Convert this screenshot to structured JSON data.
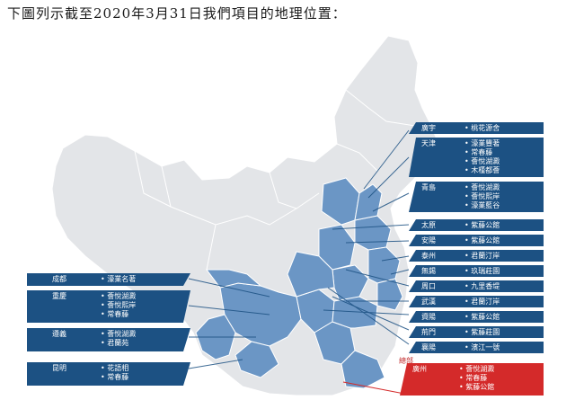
{
  "heading": "下圖列示截至2020年3月31日我們項目的地理位置：",
  "colors": {
    "callout": "#1c5183",
    "highlight": "#d42a2a",
    "province_active": "#6b96c5",
    "province_inactive": "#e3e5e8"
  },
  "callouts_left": [
    {
      "city": "成都",
      "projects": [
        "濠業名著"
      ]
    },
    {
      "city": "重慶",
      "projects": [
        "薈悅湖澱",
        "薈悅熙岸",
        "常春藤"
      ]
    },
    {
      "city": "遵義",
      "projects": [
        "薈悅湖澱",
        "君蘭苑"
      ]
    },
    {
      "city": "昆明",
      "projects": [
        "花語相",
        "常春藤"
      ]
    }
  ],
  "callouts_right": [
    {
      "city": "廣宇",
      "projects": [
        "桃花源舍"
      ]
    },
    {
      "city": "天津",
      "projects": [
        "濠業豐著",
        "常春藤",
        "薈悅湖澱",
        "木槿都薈"
      ]
    },
    {
      "city": "青島",
      "projects": [
        "薈悅湖澱",
        "薈悅熙岸",
        "濠業藍谷"
      ]
    },
    {
      "city": "太原",
      "projects": [
        "紫藤公館"
      ]
    },
    {
      "city": "安陽",
      "projects": [
        "紫藤公館"
      ]
    },
    {
      "city": "泰州",
      "projects": [
        "君蘭汀岸"
      ]
    },
    {
      "city": "無錫",
      "projects": [
        "玖瑞莊園"
      ]
    },
    {
      "city": "周口",
      "projects": [
        "九里香堤"
      ]
    },
    {
      "city": "武漢",
      "projects": [
        "君蘭汀岸"
      ]
    },
    {
      "city": "資陽",
      "projects": [
        "紫藤公館"
      ]
    },
    {
      "city": "荊門",
      "projects": [
        "紫藤莊園"
      ]
    },
    {
      "city": "襄陽",
      "projects": [
        "濱江一號"
      ]
    },
    {
      "city": "廣州",
      "projects": [
        "薈悅湖澱",
        "常春藤",
        "紫藤公館"
      ]
    }
  ],
  "map_labels": {
    "hq_marker": "總部"
  }
}
